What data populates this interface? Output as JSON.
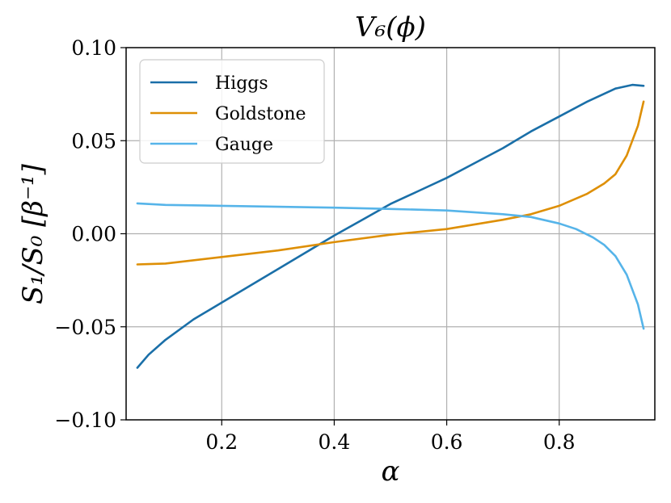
{
  "chart_data": {
    "type": "line",
    "title": "V₆(ϕ)",
    "xlabel": "α",
    "ylabel": "S₁/S₀ [β⁻¹]",
    "xlim": [
      0.03,
      0.97
    ],
    "ylim": [
      -0.1,
      0.1
    ],
    "xticks": [
      0.2,
      0.4,
      0.6,
      0.8
    ],
    "xtick_labels": [
      "0.2",
      "0.4",
      "0.6",
      "0.8"
    ],
    "yticks": [
      -0.1,
      -0.05,
      0.0,
      0.05,
      0.1
    ],
    "ytick_labels": [
      "−0.10",
      "−0.05",
      "0.00",
      "0.05",
      "0.10"
    ],
    "grid": true,
    "legend_position": "top-left",
    "series": [
      {
        "name": "Higgs",
        "color": "#1a6fa8",
        "x": [
          0.05,
          0.07,
          0.1,
          0.15,
          0.2,
          0.25,
          0.3,
          0.35,
          0.4,
          0.45,
          0.5,
          0.55,
          0.6,
          0.65,
          0.7,
          0.75,
          0.8,
          0.85,
          0.9,
          0.93,
          0.95
        ],
        "y": [
          -0.072,
          -0.065,
          -0.057,
          -0.046,
          -0.037,
          -0.028,
          -0.019,
          -0.01,
          -0.001,
          0.0075,
          0.016,
          0.023,
          0.03,
          0.038,
          0.046,
          0.055,
          0.063,
          0.071,
          0.078,
          0.08,
          0.0795
        ]
      },
      {
        "name": "Goldstone",
        "color": "#de8f05",
        "x": [
          0.05,
          0.07,
          0.1,
          0.2,
          0.3,
          0.4,
          0.5,
          0.6,
          0.7,
          0.75,
          0.8,
          0.85,
          0.88,
          0.9,
          0.92,
          0.94,
          0.95
        ],
        "y": [
          -0.0165,
          -0.0163,
          -0.016,
          -0.0125,
          -0.009,
          -0.0045,
          -0.0005,
          0.0025,
          0.0075,
          0.0105,
          0.015,
          0.0215,
          0.027,
          0.032,
          0.042,
          0.058,
          0.071
        ]
      },
      {
        "name": "Gauge",
        "color": "#56b4e9",
        "x": [
          0.05,
          0.1,
          0.2,
          0.3,
          0.4,
          0.5,
          0.6,
          0.7,
          0.75,
          0.8,
          0.83,
          0.86,
          0.88,
          0.9,
          0.92,
          0.94,
          0.95
        ],
        "y": [
          0.0163,
          0.0155,
          0.015,
          0.0145,
          0.014,
          0.0133,
          0.0125,
          0.0105,
          0.009,
          0.0055,
          0.0025,
          -0.002,
          -0.006,
          -0.012,
          -0.022,
          -0.038,
          -0.051
        ]
      }
    ]
  }
}
